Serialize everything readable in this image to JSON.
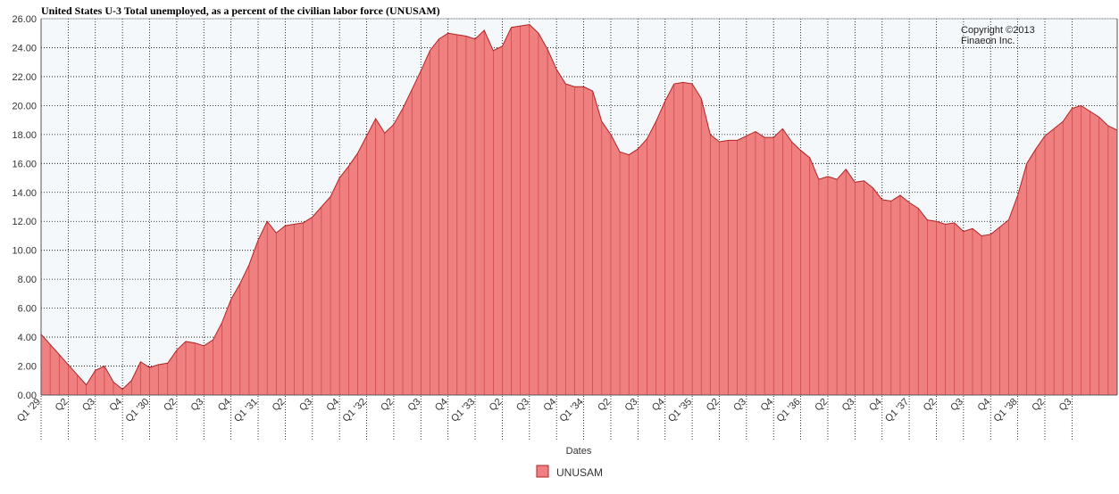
{
  "colors": {
    "area_fill": "#f08080",
    "area_stroke": "#b22222",
    "plot_bg": "#f4f8fb",
    "grid": "#000000"
  },
  "chart_data": {
    "type": "area",
    "title": "United States U-3 Total unemployed, as a percent of the civilian labor force (UNUSAM)",
    "xlabel": "Dates",
    "ylabel": "",
    "ylim": [
      0,
      26
    ],
    "yticks": [
      "0.00",
      "2.00",
      "4.00",
      "6.00",
      "8.00",
      "10.00",
      "12.00",
      "14.00",
      "16.00",
      "18.00",
      "20.00",
      "22.00",
      "24.00",
      "26.00"
    ],
    "grid": true,
    "legend_position": "bottom",
    "x_tick_labels": [
      "Q1 '29",
      "Q2",
      "Q3",
      "Q4",
      "Q1 '30",
      "Q2",
      "Q3",
      "Q4",
      "Q1 '31",
      "Q2",
      "Q3",
      "Q4",
      "Q1 '32",
      "Q2",
      "Q3",
      "Q4",
      "Q1 '33",
      "Q2",
      "Q3",
      "Q4",
      "Q1 '34",
      "Q2",
      "Q3",
      "Q4",
      "Q1 '35",
      "Q2",
      "Q3",
      "Q4",
      "Q1 '36",
      "Q2",
      "Q3",
      "Q4",
      "Q1 '37",
      "Q2",
      "Q3",
      "Q4",
      "Q1 '38",
      "Q2",
      "Q3"
    ],
    "series": [
      {
        "name": "UNUSAM",
        "frequency": "monthly",
        "start": "1929-01",
        "values": [
          4.2,
          3.5,
          2.8,
          2.1,
          1.4,
          0.7,
          1.7,
          2.0,
          0.9,
          0.4,
          1.0,
          2.3,
          1.9,
          2.1,
          2.2,
          3.1,
          3.7,
          3.6,
          3.4,
          3.8,
          5.0,
          6.6,
          7.7,
          9.0,
          10.7,
          12.0,
          11.2,
          11.7,
          11.8,
          11.9,
          12.3,
          13.0,
          13.7,
          15.0,
          15.8,
          16.7,
          17.9,
          19.1,
          18.1,
          18.7,
          19.8,
          21.1,
          22.4,
          23.8,
          24.6,
          25.0,
          24.9,
          24.8,
          24.6,
          25.2,
          23.8,
          24.1,
          25.4,
          25.5,
          25.6,
          25.0,
          23.9,
          22.5,
          21.5,
          21.3,
          21.3,
          21.0,
          18.9,
          18.0,
          16.8,
          16.6,
          17.0,
          17.7,
          18.9,
          20.3,
          21.5,
          21.6,
          21.5,
          20.5,
          18.0,
          17.5,
          17.6,
          17.6,
          17.9,
          18.2,
          17.8,
          17.8,
          18.4,
          17.5,
          16.9,
          16.4,
          14.9,
          15.1,
          14.9,
          15.6,
          14.7,
          14.8,
          14.3,
          13.5,
          13.4,
          13.8,
          13.3,
          12.9,
          12.1,
          12.0,
          11.8,
          11.9,
          11.3,
          11.5,
          11.0,
          11.1,
          11.6,
          12.1,
          13.8,
          16.0,
          17.0,
          17.9,
          18.4,
          18.9,
          19.8,
          20.0,
          19.6,
          19.2,
          18.6,
          18.3
        ]
      }
    ]
  },
  "copyright": {
    "line1": "Copyright ©2013",
    "line2": "Finaeon Inc."
  }
}
